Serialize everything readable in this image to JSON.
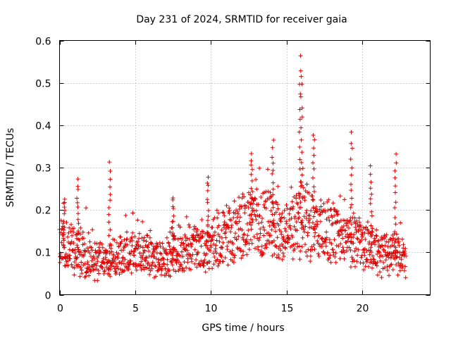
{
  "chart_data": {
    "type": "scatter",
    "title": "Day 231 of 2024, SRMTID for receiver gaia",
    "xlabel": "GPS time / hours",
    "ylabel": "SRMTID / TECUs",
    "xlim": [
      0,
      24.5
    ],
    "ylim": [
      0,
      0.6
    ],
    "x_ticks": [
      0,
      5,
      10,
      15,
      20
    ],
    "x_tick_labels": [
      "0",
      "5",
      "10",
      "15",
      "20"
    ],
    "y_ticks": [
      0,
      0.1,
      0.2,
      0.3,
      0.4,
      0.5,
      0.6
    ],
    "y_tick_labels": [
      "0",
      "0.1",
      "0.2",
      "0.3",
      "0.4",
      "0.5",
      "0.6"
    ],
    "grid": true,
    "marker": "+",
    "color": "#e00000",
    "series": [
      {
        "name": "SRMTID",
        "x_range": [
          0,
          22.9
        ],
        "sample_interval_hours": 0.0167,
        "baseline_by_hour": [
          [
            0,
            0.12
          ],
          [
            1,
            0.11
          ],
          [
            2,
            0.08
          ],
          [
            3,
            0.08
          ],
          [
            4,
            0.09
          ],
          [
            5,
            0.1
          ],
          [
            6,
            0.09
          ],
          [
            7,
            0.08
          ],
          [
            8,
            0.11
          ],
          [
            9,
            0.11
          ],
          [
            10,
            0.11
          ],
          [
            11,
            0.14
          ],
          [
            12,
            0.16
          ],
          [
            13,
            0.17
          ],
          [
            14,
            0.16
          ],
          [
            15,
            0.14
          ],
          [
            16,
            0.18
          ],
          [
            17,
            0.15
          ],
          [
            18,
            0.14
          ],
          [
            19,
            0.13
          ],
          [
            20,
            0.12
          ],
          [
            21,
            0.1
          ],
          [
            22,
            0.1
          ],
          [
            22.9,
            0.08
          ]
        ],
        "spikes": [
          {
            "x": 0.3,
            "y": 0.23
          },
          {
            "x": 1.2,
            "y": 0.27
          },
          {
            "x": 3.3,
            "y": 0.31
          },
          {
            "x": 7.5,
            "y": 0.23
          },
          {
            "x": 9.8,
            "y": 0.28
          },
          {
            "x": 12.7,
            "y": 0.33
          },
          {
            "x": 14.1,
            "y": 0.36
          },
          {
            "x": 15.9,
            "y": 0.56
          },
          {
            "x": 16.0,
            "y": 0.52
          },
          {
            "x": 16.8,
            "y": 0.38
          },
          {
            "x": 19.3,
            "y": 0.38
          },
          {
            "x": 20.6,
            "y": 0.3
          },
          {
            "x": 22.2,
            "y": 0.33
          }
        ]
      }
    ]
  }
}
